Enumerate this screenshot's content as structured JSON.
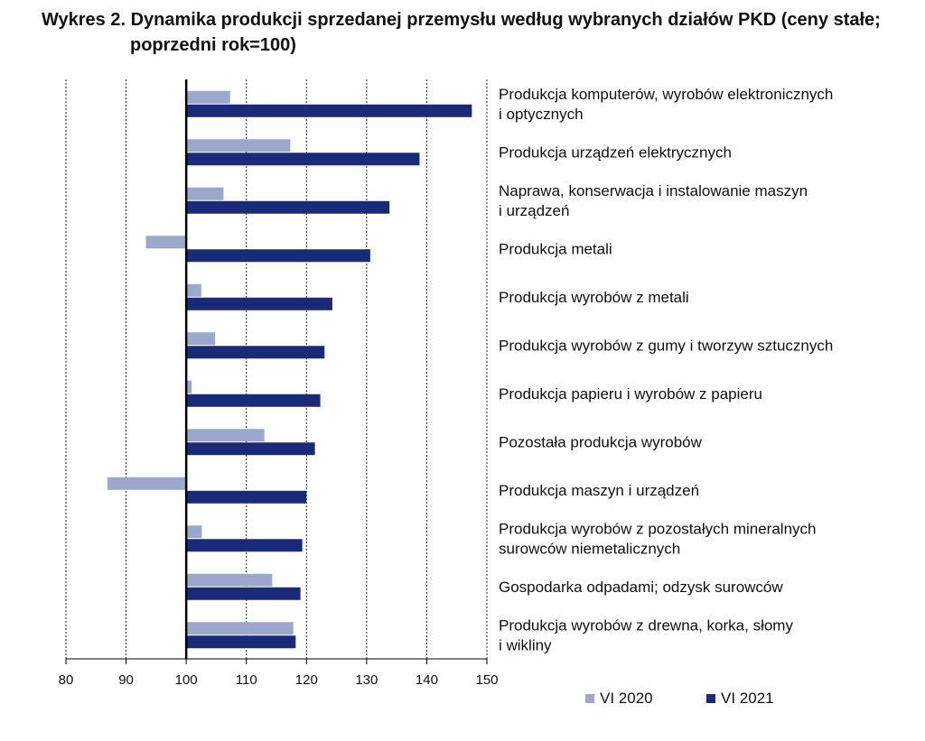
{
  "title": {
    "line1": "Wykres 2. Dynamika produkcji sprzedanej przemysłu według wybranych działów PKD (ceny stałe;",
    "line2": "poprzedni rok=100)"
  },
  "chart_data": {
    "type": "bar",
    "orientation": "horizontal",
    "title": "Wykres 2. Dynamika produkcji sprzedanej przemysłu według wybranych działów PKD (ceny stałe; poprzedni rok=100)",
    "categories": [
      [
        "Produkcja komputerów, wyrobów elektronicznych",
        "i optycznych"
      ],
      [
        "Produkcja urządzeń elektrycznych"
      ],
      [
        "Naprawa, konserwacja i instalowanie maszyn",
        "i urządzeń"
      ],
      [
        "Produkcja metali"
      ],
      [
        "Produkcja wyrobów z metali"
      ],
      [
        "Produkcja wyrobów z gumy i tworzyw sztucznych"
      ],
      [
        "Produkcja papieru i wyrobów z papieru"
      ],
      [
        "Pozostała produkcja wyrobów"
      ],
      [
        "Produkcja maszyn i urządzeń"
      ],
      [
        "Produkcja wyrobów z pozostałych mineralnych",
        "surowców niemetalicznych"
      ],
      [
        "Gospodarka odpadami; odzysk surowców"
      ],
      [
        "Produkcja wyrobów z drewna, korka, słomy",
        "i wikliny"
      ]
    ],
    "series": [
      {
        "name": "VI 2020",
        "color": "#9ba8cc",
        "values": [
          107.3,
          117.3,
          106.2,
          93.3,
          102.5,
          104.8,
          100.9,
          113.0,
          86.9,
          102.6,
          114.3,
          117.8
        ]
      },
      {
        "name": "VI 2021",
        "color": "#1b2a78",
        "values": [
          147.5,
          138.8,
          133.8,
          130.6,
          124.3,
          123.0,
          122.3,
          121.4,
          120.0,
          119.3,
          119.0,
          118.2
        ]
      }
    ],
    "xlim": [
      80,
      150
    ],
    "xticks": [
      80,
      90,
      100,
      110,
      120,
      130,
      140,
      150
    ],
    "baseline": 100,
    "grid": "vertical dotted",
    "legend_position": "bottom"
  }
}
